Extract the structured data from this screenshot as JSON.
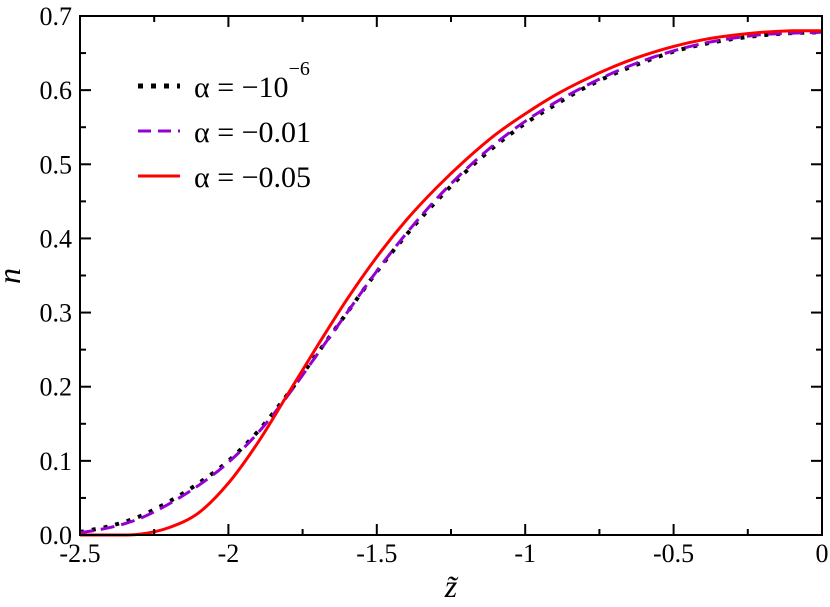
{
  "chart_data": {
    "type": "line",
    "title": "",
    "xlabel": "z̃",
    "ylabel": "n",
    "xlim": [
      -2.5,
      0
    ],
    "ylim": [
      0,
      0.7
    ],
    "grid": false,
    "legend_position": "top-left",
    "xticks": [
      -2.5,
      -2,
      -1.5,
      -1,
      -0.5,
      0
    ],
    "xtick_labels": [
      "-2.5",
      "-2",
      "-1.5",
      "-1",
      "-0.5",
      "0"
    ],
    "yticks": [
      0,
      0.1,
      0.2,
      0.3,
      0.4,
      0.5,
      0.6,
      0.7
    ],
    "ytick_labels": [
      "0.0",
      "0.1",
      "0.2",
      "0.3",
      "0.4",
      "0.5",
      "0.6",
      "0.7"
    ],
    "x": [
      -2.5,
      -2.4,
      -2.3,
      -2.2,
      -2.1,
      -2.0,
      -1.9,
      -1.8,
      -1.7,
      -1.6,
      -1.5,
      -1.4,
      -1.3,
      -1.2,
      -1.1,
      -1.0,
      -0.9,
      -0.8,
      -0.7,
      -0.6,
      -0.5,
      -0.4,
      -0.3,
      -0.2,
      -0.1,
      0.0
    ],
    "series": [
      {
        "name": "α = −10",
        "name_sup": "−6",
        "color": "#000000",
        "dash": "dotted",
        "values": [
          0.004,
          0.012,
          0.025,
          0.045,
          0.07,
          0.1,
          0.14,
          0.19,
          0.245,
          0.3,
          0.355,
          0.405,
          0.45,
          0.49,
          0.525,
          0.555,
          0.58,
          0.603,
          0.622,
          0.638,
          0.652,
          0.662,
          0.669,
          0.674,
          0.677,
          0.678
        ]
      },
      {
        "name": "α = −0.01",
        "color": "#9400D3",
        "dash": "dashed",
        "values": [
          0.003,
          0.01,
          0.022,
          0.042,
          0.067,
          0.098,
          0.138,
          0.188,
          0.244,
          0.3,
          0.356,
          0.407,
          0.453,
          0.493,
          0.528,
          0.558,
          0.583,
          0.605,
          0.624,
          0.64,
          0.653,
          0.663,
          0.67,
          0.675,
          0.677,
          0.678
        ]
      },
      {
        "name": "α = −0.05",
        "color": "#FF0000",
        "dash": "solid",
        "values": [
          0.0,
          0.0,
          0.001,
          0.01,
          0.03,
          0.07,
          0.125,
          0.19,
          0.255,
          0.318,
          0.375,
          0.425,
          0.468,
          0.506,
          0.54,
          0.568,
          0.593,
          0.614,
          0.632,
          0.647,
          0.659,
          0.668,
          0.674,
          0.678,
          0.68,
          0.68
        ]
      }
    ]
  }
}
